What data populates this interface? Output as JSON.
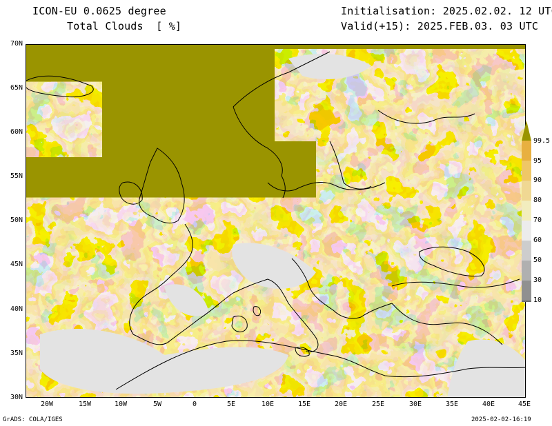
{
  "header": {
    "model": "ICON-EU 0.0625 degree",
    "field": "Total Clouds  [ %]",
    "init": "Initialisation: 2025.02.02. 12 UTC",
    "valid": "Valid(+15): 2025.FEB.03. 03 UTC"
  },
  "axes": {
    "lat_labels": [
      "70N",
      "65N",
      "60N",
      "55N",
      "50N",
      "45N",
      "40N",
      "35N",
      "30N"
    ],
    "lon_labels": [
      "20W",
      "15W",
      "10W",
      "5W",
      "0",
      "5E",
      "10E",
      "15E",
      "20E",
      "25E",
      "30E",
      "35E",
      "40E",
      "45E"
    ]
  },
  "legend": {
    "labels": [
      "99.5",
      "95",
      "90",
      "80",
      "70",
      "60",
      "50",
      "30",
      "10"
    ],
    "colors": [
      "#9a9400",
      "#e8b040",
      "#efc766",
      "#f0d893",
      "#f2edbe",
      "#ececec",
      "#cdcdcd",
      "#b0b0b0",
      "#909090",
      "#6c6c6c"
    ]
  },
  "footer": {
    "left": "GrADS: COLA/IGES",
    "right": "2025-02-02-16:19"
  }
}
